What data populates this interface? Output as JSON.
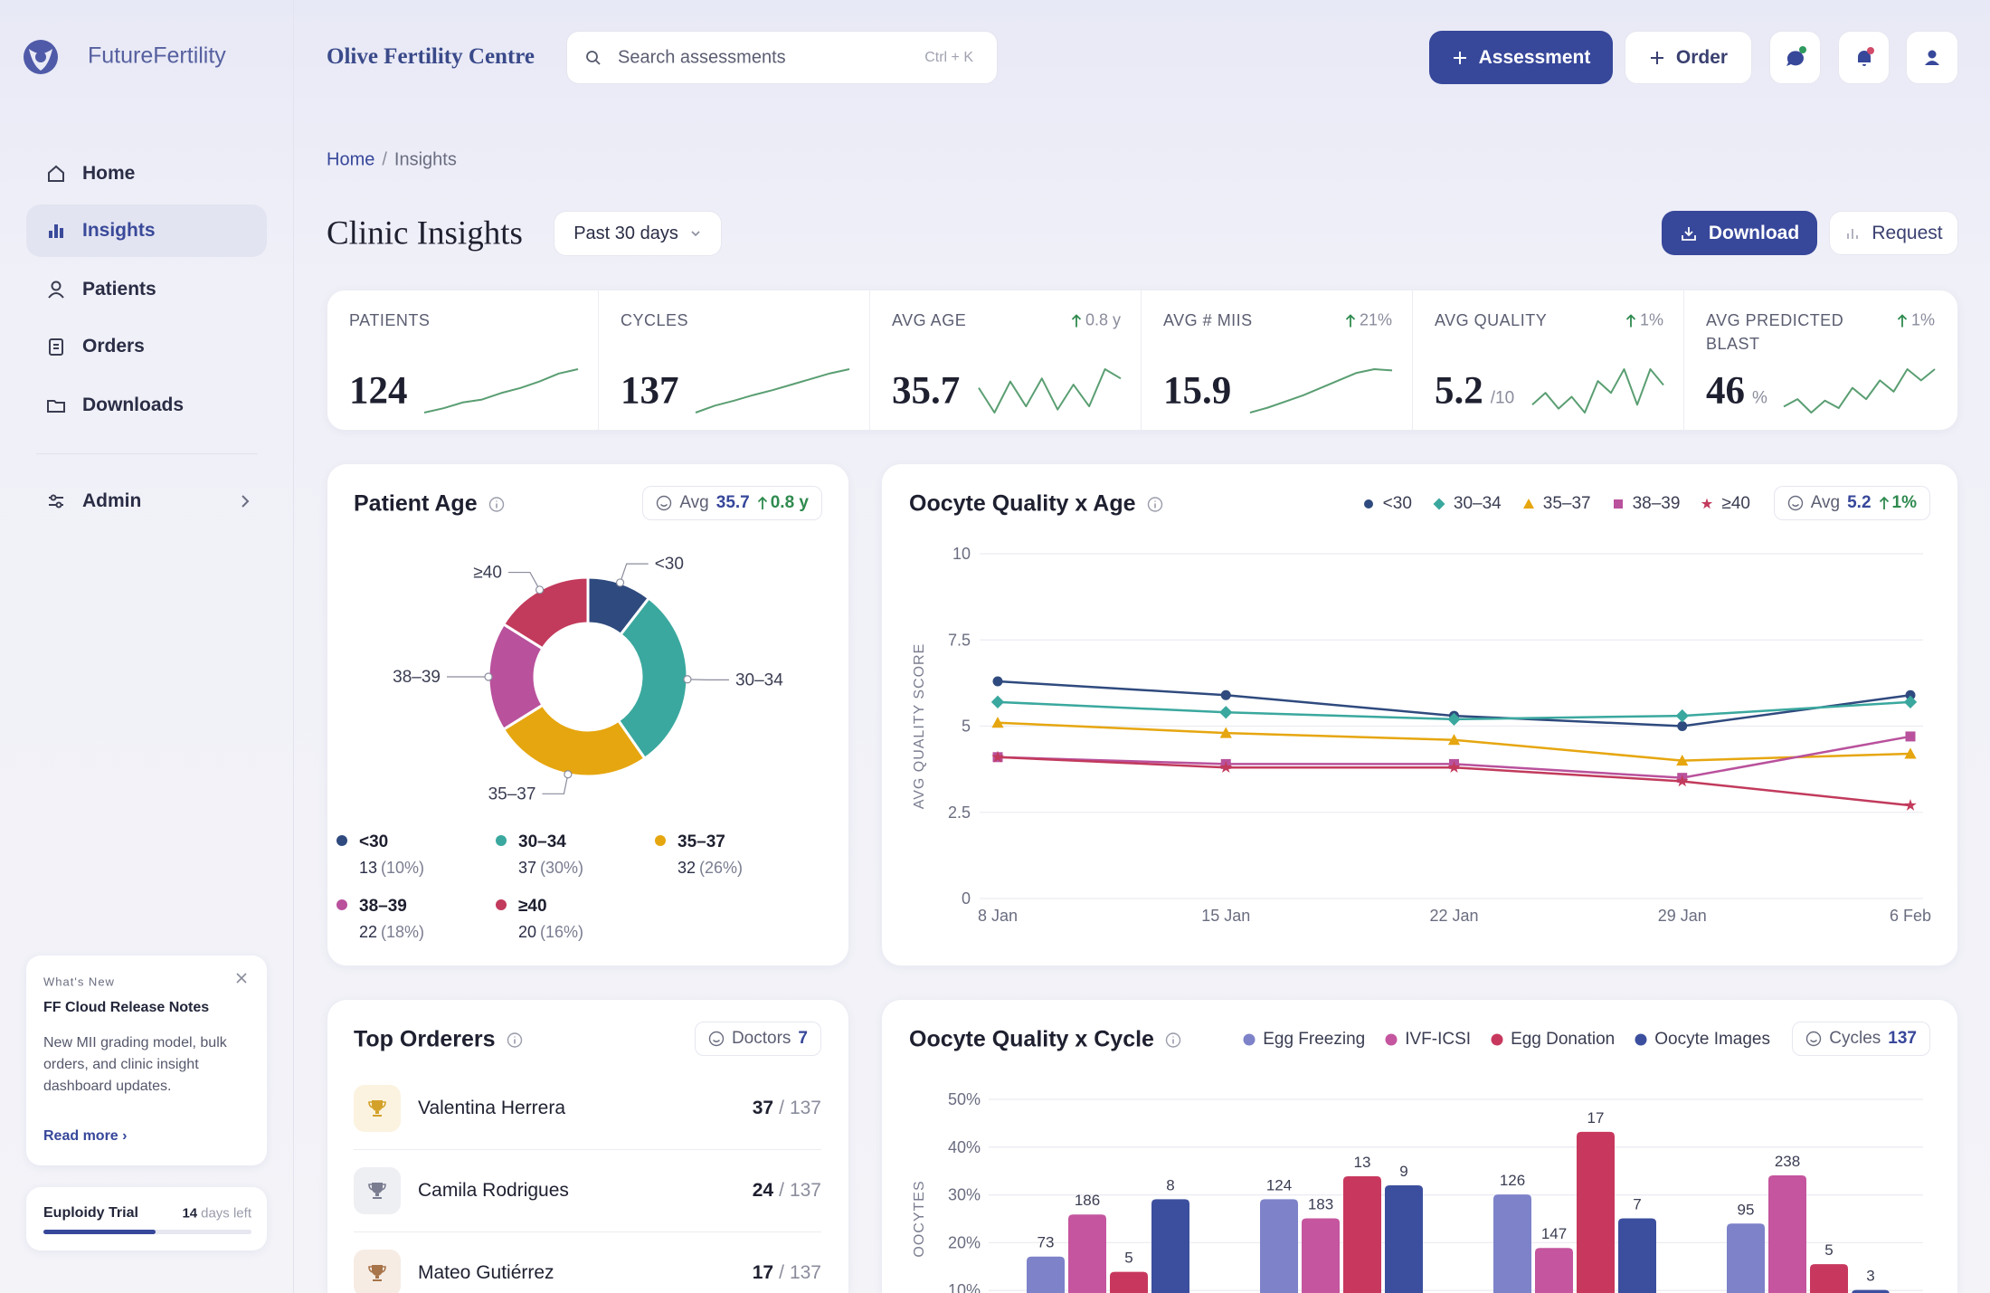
{
  "sidebar": {
    "brand": "FutureFertility",
    "nav": [
      "Home",
      "Insights",
      "Patients",
      "Orders",
      "Downloads"
    ],
    "admin": "Admin",
    "whats_new": {
      "kicker": "What's New",
      "title": "FF Cloud Release Notes",
      "body": "New MII grading model, bulk orders, and clinic insight dashboard updates.",
      "link": "Read more ›"
    },
    "trial": {
      "name": "Euploidy Trial",
      "days": 14,
      "days_label": "days left",
      "progress": 54
    }
  },
  "header": {
    "clinic": "Olive Fertility Centre",
    "search": "Search assessments",
    "shortcut": "Ctrl + K",
    "assessment": "Assessment",
    "order": "Order"
  },
  "breadcrumb": {
    "items": [
      "Home",
      "Insights"
    ],
    "separator": "/"
  },
  "page": {
    "title": "Clinic Insights",
    "range": "Past 30 days",
    "download": "Download",
    "request": "Request"
  },
  "kpis": [
    {
      "label": "PATIENTS",
      "value": 124,
      "spark": [
        2,
        2.6,
        3.4,
        3.8,
        4.7,
        5.4,
        6.3,
        7.4,
        8
      ]
    },
    {
      "label": "CYCLES",
      "value": 137,
      "spark": [
        1,
        2,
        2.7,
        3.5,
        4.2,
        5,
        5.8,
        6.6,
        7.2
      ]
    },
    {
      "label": "AVG AGE",
      "value": 35.7,
      "change": "0.8 y",
      "spark": [
        5,
        1,
        6,
        2,
        6.5,
        1.5,
        5.5,
        2,
        8,
        6.5
      ]
    },
    {
      "label": "AVG # MIIS",
      "value": 15.9,
      "change": "21%",
      "spark": [
        1,
        1.8,
        2.8,
        3.8,
        5,
        6.2,
        7.4,
        8,
        7.8
      ]
    },
    {
      "label": "AVG QUALITY",
      "value": 5.2,
      "unit": "/10",
      "change": "1%",
      "spark": [
        2,
        3.5,
        1.5,
        3,
        1,
        5,
        3.5,
        6.5,
        2,
        6.5,
        4.5
      ]
    },
    {
      "label": "AVG PREDICTED BLAST",
      "value": 46,
      "unit": "%",
      "change": "1%",
      "spark": [
        3,
        4,
        2.2,
        3.8,
        2.8,
        5.5,
        4,
        6.5,
        5,
        8,
        6.5,
        8
      ]
    }
  ],
  "chart_data": [
    {
      "type": "pie",
      "title": "Patient Age",
      "badge": {
        "label": "Avg",
        "value": 35.7,
        "change": "0.8 y"
      },
      "categories": [
        "<30",
        "30–34",
        "35–37",
        "38–39",
        "≥40"
      ],
      "values": [
        13,
        37,
        32,
        22,
        20
      ],
      "shares": [
        "(10%)",
        "(30%)",
        "(26%)",
        "(18%)",
        "(16%)"
      ],
      "colors": [
        "#2f4a7e",
        "#3aa89e",
        "#e6a60f",
        "#b9519c",
        "#c23a5c"
      ]
    },
    {
      "type": "line",
      "title": "Oocyte Quality x Age",
      "badge": {
        "label": "Avg",
        "value": 5.2,
        "change": "1%"
      },
      "categories": [
        "8 Jan",
        "15 Jan",
        "22 Jan",
        "29 Jan",
        "6 Feb"
      ],
      "y_label": "AVG QUALITY SCORE",
      "ylim": [
        0,
        10
      ],
      "yticks": [
        0,
        2.5,
        5,
        7.5,
        10
      ],
      "grid": true,
      "series": [
        {
          "name": "<30",
          "color": "#2f4a7e",
          "marker": "circle",
          "values": [
            6.3,
            5.9,
            5.3,
            5.0,
            5.9
          ]
        },
        {
          "name": "30–34",
          "color": "#3aa89e",
          "marker": "diamond",
          "values": [
            5.7,
            5.4,
            5.2,
            5.3,
            5.7
          ]
        },
        {
          "name": "35–37",
          "color": "#e6a60f",
          "marker": "triangle",
          "values": [
            5.1,
            4.8,
            4.6,
            4.0,
            4.2
          ]
        },
        {
          "name": "38–39",
          "color": "#b9519c",
          "marker": "square",
          "values": [
            4.1,
            3.9,
            3.9,
            3.5,
            4.7
          ]
        },
        {
          "name": "≥40",
          "color": "#c23a5c",
          "marker": "star",
          "values": [
            4.1,
            3.8,
            3.8,
            3.4,
            2.7
          ]
        }
      ]
    },
    {
      "type": "bar",
      "title": "Oocyte Quality x Cycle",
      "badge": {
        "label": "Cycles",
        "value": 137
      },
      "categories": [
        null,
        null,
        null,
        null
      ],
      "y_label": "OOCYTES",
      "ylim": [
        0,
        50
      ],
      "yticks": [
        {
          "value": 10,
          "label": "10%"
        },
        {
          "value": 20,
          "label": "20%"
        },
        {
          "value": 30,
          "label": "30%"
        },
        {
          "value": 40,
          "label": "40%"
        },
        {
          "value": 50,
          "label": "50%"
        }
      ],
      "grid": true,
      "series": [
        {
          "name": "Egg Freezing",
          "color": "#7d82c9",
          "values": [
            17.1,
            29.1,
            30.1,
            24
          ],
          "counts": [
            73,
            124,
            126,
            95
          ]
        },
        {
          "name": "IVF-ICSI",
          "color": "#c4559e",
          "values": [
            25.9,
            25.1,
            18.9,
            34.1
          ],
          "counts": [
            186,
            183,
            147,
            238
          ]
        },
        {
          "name": "Egg Donation",
          "color": "#c8385e",
          "values": [
            13.9,
            33.9,
            43.2,
            15.5
          ],
          "counts": [
            5,
            13,
            17,
            5
          ]
        },
        {
          "name": "Oocyte Images",
          "color": "#3c4f9e",
          "values": [
            29.1,
            32,
            25.1,
            10.1
          ],
          "counts": [
            8,
            9,
            7,
            3
          ]
        }
      ]
    }
  ],
  "orderers": {
    "title": "Top Orderers",
    "badge": {
      "label": "Doctors",
      "value": 7
    },
    "separator": "/",
    "rows": [
      {
        "name": "Valentina Herrera",
        "count": 37,
        "total": 137
      },
      {
        "name": "Camila Rodrigues",
        "count": 24,
        "total": 137
      },
      {
        "name": "Mateo Gutiérrez",
        "count": 17,
        "total": 137
      }
    ]
  }
}
